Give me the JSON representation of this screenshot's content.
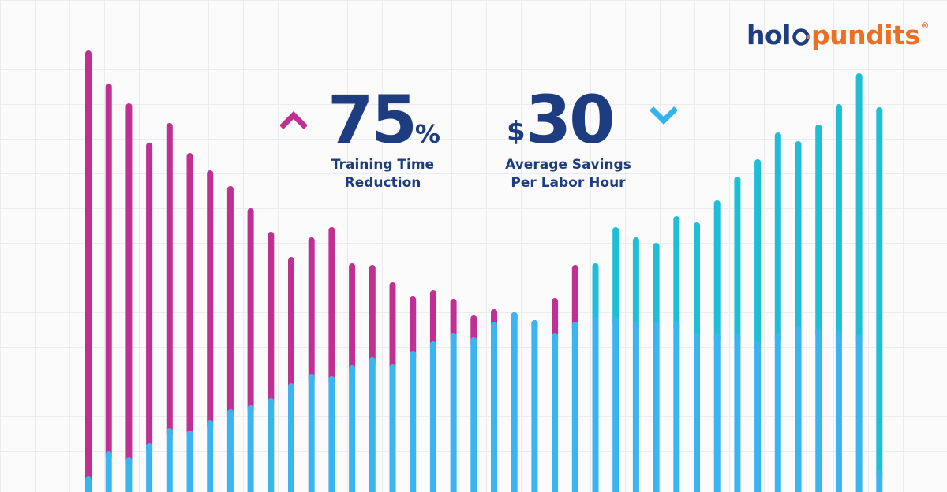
{
  "brand": {
    "name_part1": "holo",
    "name_part2": "pundits",
    "registered_mark": "®",
    "colors": {
      "navy": "#1d3d80",
      "orange": "#ec6f24"
    }
  },
  "stats": [
    {
      "value": "75",
      "suffix": "%",
      "label": "Training Time\nReduction",
      "trend_icon": "chevron-up-icon",
      "trend_color": "#c02f92"
    },
    {
      "prefix": "$",
      "value": "30",
      "label": "Average Savings\nPer Labor Hour",
      "trend_icon": "chevron-down-icon",
      "trend_color": "#33b2ec"
    }
  ],
  "colors": {
    "magenta": "#c02f92",
    "blue": "#3bb5f1",
    "teal": "#1ebfd6",
    "grid": "#ececf0",
    "text": "#1d3d80"
  },
  "decorative_bars": {
    "count": 40,
    "upper_segment_colors": [
      "magenta",
      "magenta",
      "magenta",
      "magenta",
      "magenta",
      "magenta",
      "magenta",
      "magenta",
      "magenta",
      "magenta",
      "magenta",
      "magenta",
      "magenta",
      "magenta",
      "magenta",
      "magenta",
      "magenta",
      "magenta",
      "magenta",
      "magenta",
      "magenta",
      "magenta",
      "magenta",
      "magenta",
      "magenta",
      "teal",
      "teal",
      "teal",
      "teal",
      "teal",
      "teal",
      "teal",
      "teal",
      "teal",
      "teal",
      "teal",
      "teal",
      "teal",
      "teal",
      "teal"
    ]
  }
}
